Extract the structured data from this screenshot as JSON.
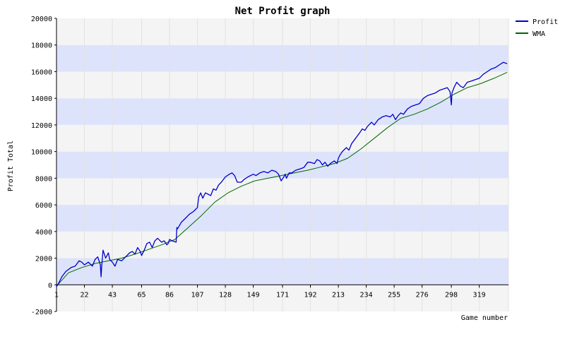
{
  "chart_data": {
    "type": "line",
    "title": "Net Profit graph",
    "xlabel": "Game number",
    "ylabel": "Profit Total",
    "xlim": [
      1,
      341
    ],
    "ylim": [
      -2000,
      20000
    ],
    "x_ticks": [
      1,
      22,
      43,
      65,
      86,
      107,
      128,
      149,
      171,
      192,
      213,
      234,
      255,
      276,
      298,
      319
    ],
    "y_ticks": [
      -2000,
      0,
      2000,
      4000,
      6000,
      8000,
      10000,
      12000,
      14000,
      16000,
      18000,
      20000
    ],
    "grid": true,
    "legend": "top-right",
    "colors": {
      "profit": "#0000cc",
      "wma": "#006600",
      "band_light": "#f4f4f4",
      "band_blue": "#dde3fb"
    },
    "series": [
      {
        "name": "Profit",
        "x": [
          1,
          3,
          5,
          8,
          12,
          15,
          18,
          20,
          22,
          25,
          28,
          30,
          32,
          34,
          34.5,
          35,
          36,
          38,
          40,
          41,
          43,
          45,
          47,
          50,
          53,
          56,
          58,
          60,
          62,
          64,
          65,
          67,
          69,
          71,
          73,
          75,
          77,
          80,
          82,
          84,
          85,
          86,
          88,
          91,
          91.5,
          92,
          95,
          98,
          101,
          104,
          107,
          108,
          109,
          109.5,
          111,
          113,
          115,
          117,
          119,
          121,
          123,
          125,
          128,
          131,
          133,
          135,
          137,
          140,
          142,
          145,
          147,
          149,
          151,
          154,
          157,
          160,
          163,
          166,
          168,
          170,
          172,
          173,
          174,
          176,
          178,
          181,
          184,
          187,
          190,
          192,
          195,
          197,
          199,
          201,
          203,
          205,
          207,
          210,
          212,
          213,
          214,
          216,
          219,
          221,
          223,
          226,
          229,
          231,
          233,
          235,
          238,
          240,
          243,
          246,
          249,
          252,
          254,
          256,
          258,
          260,
          262,
          265,
          268,
          271,
          274,
          277,
          280,
          283,
          286,
          289,
          292,
          295,
          297,
          298,
          298.5,
          300,
          302,
          305,
          307,
          310,
          313,
          316,
          319,
          322,
          325,
          328,
          331,
          334,
          337,
          340
        ],
        "values": [
          -150,
          200,
          600,
          1000,
          1300,
          1400,
          1800,
          1700,
          1500,
          1700,
          1400,
          1900,
          2100,
          1500,
          600,
          1400,
          2600,
          2000,
          2400,
          1900,
          1700,
          1400,
          1900,
          1800,
          2100,
          2400,
          2500,
          2300,
          2800,
          2500,
          2200,
          2600,
          3100,
          3200,
          2800,
          3300,
          3500,
          3200,
          3300,
          3000,
          3100,
          3400,
          3300,
          3200,
          4300,
          4200,
          4700,
          5000,
          5300,
          5500,
          5800,
          6600,
          6800,
          6900,
          6500,
          6900,
          6800,
          6700,
          7200,
          7100,
          7500,
          7700,
          8100,
          8300,
          8400,
          8200,
          7700,
          7700,
          7900,
          8100,
          8200,
          8300,
          8200,
          8400,
          8500,
          8400,
          8600,
          8500,
          8300,
          7800,
          8100,
          8300,
          8000,
          8400,
          8400,
          8600,
          8700,
          8800,
          9200,
          9200,
          9100,
          9400,
          9300,
          9000,
          9200,
          8900,
          9100,
          9300,
          9100,
          9500,
          9700,
          10000,
          10300,
          10100,
          10600,
          11000,
          11400,
          11700,
          11600,
          11900,
          12200,
          12000,
          12400,
          12600,
          12700,
          12600,
          12800,
          12400,
          12700,
          12900,
          12800,
          13200,
          13400,
          13500,
          13600,
          14000,
          14200,
          14300,
          14400,
          14600,
          14700,
          14800,
          14500,
          13500,
          14400,
          14800,
          15200,
          14900,
          14800,
          15200,
          15300,
          15400,
          15500,
          15800,
          16000,
          16200,
          16300,
          16500,
          16700,
          16600
        ]
      },
      {
        "name": "WMA",
        "x": [
          1,
          10,
          20,
          30,
          40,
          50,
          60,
          70,
          80,
          90,
          100,
          110,
          120,
          130,
          140,
          150,
          160,
          170,
          180,
          190,
          200,
          210,
          220,
          230,
          240,
          250,
          260,
          270,
          280,
          290,
          300,
          310,
          320,
          330,
          340
        ],
        "values": [
          -100,
          900,
          1300,
          1600,
          1800,
          2000,
          2300,
          2650,
          3000,
          3400,
          4300,
          5200,
          6200,
          6900,
          7400,
          7800,
          8000,
          8200,
          8400,
          8600,
          8850,
          9100,
          9500,
          10200,
          11000,
          11800,
          12500,
          12800,
          13200,
          13700,
          14300,
          14800,
          15100,
          15500,
          15950
        ]
      }
    ]
  }
}
